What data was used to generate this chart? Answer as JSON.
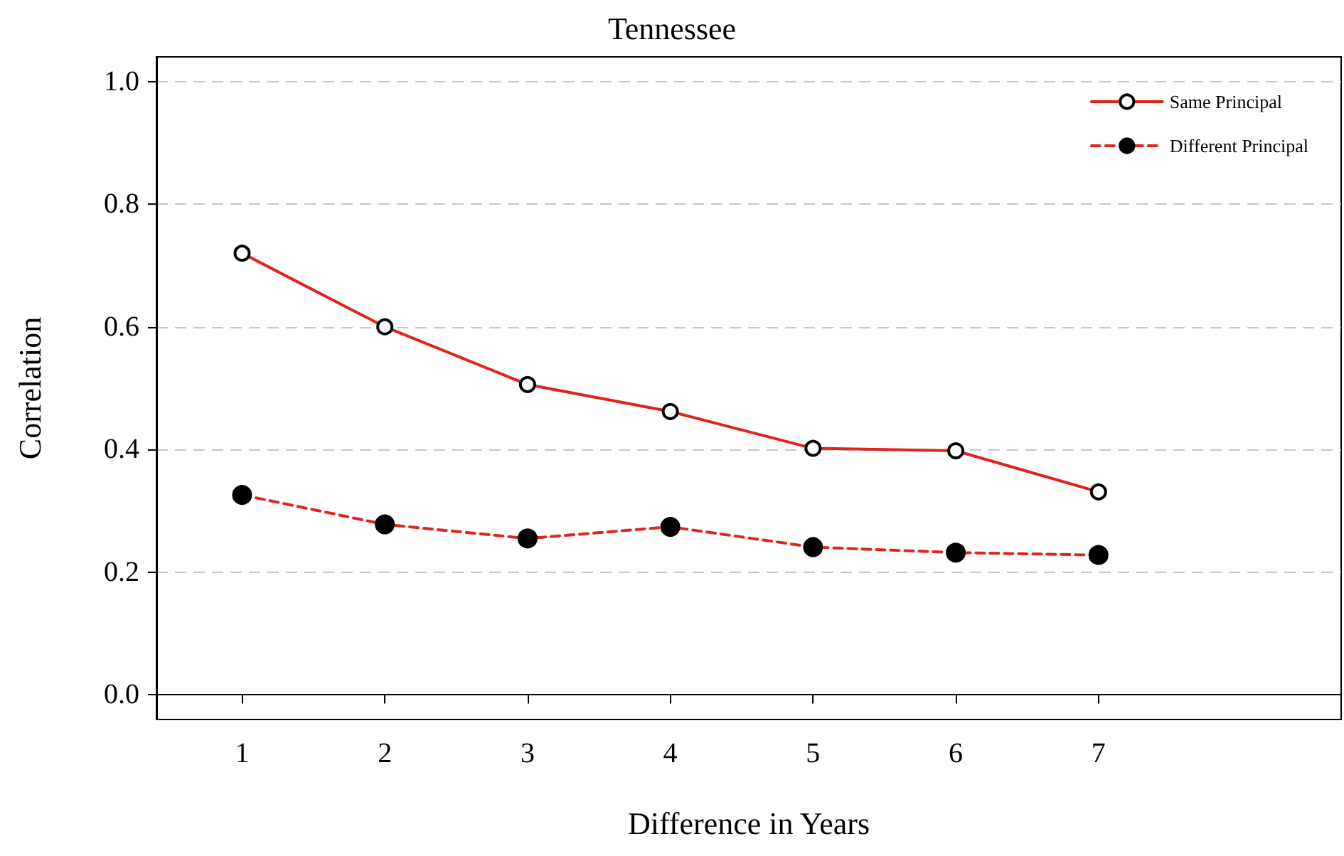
{
  "chart_data": {
    "type": "line",
    "title": "Tennessee",
    "xlabel": "Difference in Years",
    "ylabel": "Correlation",
    "x": [
      1,
      2,
      3,
      4,
      5,
      6,
      7
    ],
    "series": [
      {
        "name": "Same Principal",
        "color": "#e0241c",
        "values": [
          0.72,
          0.6,
          0.506,
          0.462,
          0.402,
          0.398,
          0.331
        ],
        "marker": "circle",
        "line_style": "solid"
      },
      {
        "name": "Different Principal",
        "color": "#e0241c",
        "values": [
          0.326,
          0.278,
          0.255,
          0.274,
          0.241,
          0.232,
          0.228
        ],
        "marker": "circle",
        "line_style": "dashed"
      }
    ],
    "xlim": [
      0.4,
      8.7
    ],
    "xticks": [
      1,
      2,
      3,
      4,
      5,
      6,
      7
    ],
    "ylim": [
      -0.04,
      1.04
    ],
    "yticks": [
      {
        "value": 0,
        "label": "0.0"
      },
      {
        "value": 0.2,
        "label": "0.2"
      },
      {
        "value": 0.4,
        "label": "0.4"
      },
      {
        "value": 0.6,
        "label": "0.6"
      },
      {
        "value": 0.8,
        "label": "0.8"
      },
      {
        "value": 1,
        "label": "1.0"
      }
    ],
    "grid": "y",
    "legend": "top right"
  }
}
